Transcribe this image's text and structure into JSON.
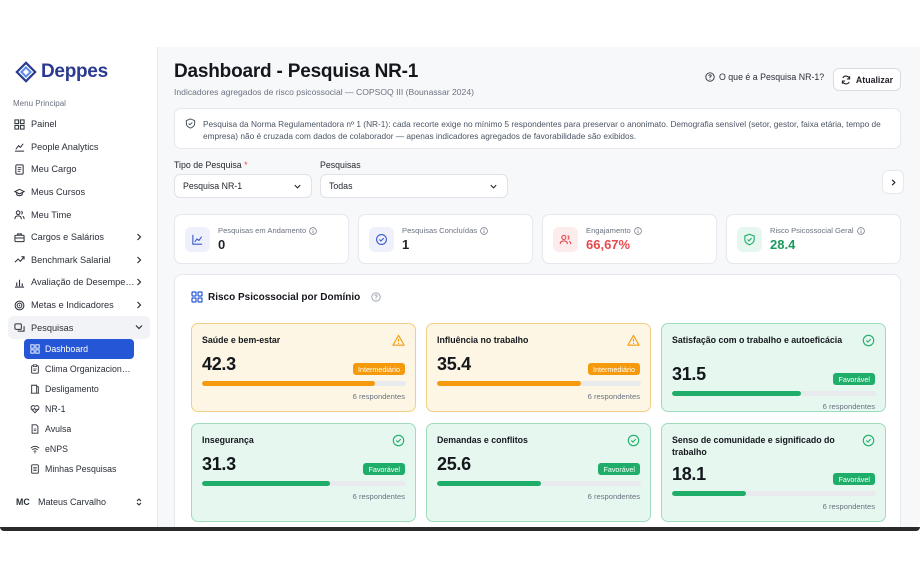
{
  "app": {
    "logo_text": "Deppes"
  },
  "sidebar": {
    "caption": "Menu Principal",
    "items": [
      {
        "label": "Painel",
        "icon": "grid-icon"
      },
      {
        "label": "People Analytics",
        "icon": "analytics-icon"
      },
      {
        "label": "Meu Cargo",
        "icon": "document-icon"
      },
      {
        "label": "Meus Cursos",
        "icon": "graduation-cap-icon"
      },
      {
        "label": "Meu Time",
        "icon": "users-icon"
      },
      {
        "label": "Cargos e Salários",
        "icon": "briefcase-icon"
      },
      {
        "label": "Benchmark Salarial",
        "icon": "trend-icon"
      },
      {
        "label": "Avaliação de Desempe…",
        "icon": "bar-chart-icon"
      },
      {
        "label": "Metas e Indicadores",
        "icon": "target-icon"
      },
      {
        "label": "Pesquisas",
        "icon": "survey-icon"
      }
    ],
    "sub_items": [
      {
        "label": "Dashboard",
        "icon": "grid-icon"
      },
      {
        "label": "Clima Organizacion…",
        "icon": "clipboard-icon"
      },
      {
        "label": "Desligamento",
        "icon": "door-icon"
      },
      {
        "label": "NR-1",
        "icon": "heart-pulse-icon"
      },
      {
        "label": "Avulsa",
        "icon": "file-icon"
      },
      {
        "label": "eNPS",
        "icon": "wifi-icon"
      },
      {
        "label": "Minhas Pesquisas",
        "icon": "list-icon"
      }
    ],
    "user": {
      "initials": "MC",
      "name": "Mateus Carvalho"
    }
  },
  "header": {
    "title": "Dashboard - Pesquisa NR-1",
    "subtitle": "Indicadores agregados de risco psicossocial — COPSOQ III (Bounassar 2024)",
    "help_link": "O que é a Pesquisa NR-1?",
    "refresh_label": "Atualizar"
  },
  "notice": {
    "text": "Pesquisa da Norma Regulamentadora nº 1 (NR-1): cada recorte exige no mínimo 5 respondentes para preservar o anonimato. Demografia sensível (setor, gestor, faixa etária, tempo de empresa) não é cruzada com dados de colaborador — apenas indicadores agregados de favorabilidade são exibidos."
  },
  "filters": {
    "type_label": "Tipo de Pesquisa",
    "type_required": "*",
    "type_value": "Pesquisa NR-1",
    "survey_label": "Pesquisas",
    "survey_value": "Todas"
  },
  "stats": [
    {
      "label": "Pesquisas em Andamento",
      "value": "0",
      "color": "#1f2329",
      "icon": "chart-line-icon",
      "icon_bg": "#eef1fb",
      "icon_color": "#3b5bcc"
    },
    {
      "label": "Pesquisas Concluídas",
      "value": "1",
      "color": "#1f2329",
      "icon": "check-circle-icon",
      "icon_bg": "#eef1fb",
      "icon_color": "#3b5bcc"
    },
    {
      "label": "Engajamento",
      "value": "66,67%",
      "color": "#e5484d",
      "icon": "users-icon",
      "icon_bg": "#fdecec",
      "icon_color": "#e5484d"
    },
    {
      "label": "Risco Psicossocial Geral",
      "value": "28.4",
      "color": "#1c9a5e",
      "icon": "shield-check-icon",
      "icon_bg": "#e6f7ef",
      "icon_color": "#1fae6a"
    }
  ],
  "panel": {
    "title": "Risco Psicossocial por Domínio",
    "domains": [
      {
        "title": "Saúde e bem-estar",
        "score": "42.3",
        "progress": 42.3,
        "badge": "Intermediário",
        "status": "warn",
        "respondents": "6 respondentes"
      },
      {
        "title": "Influência no trabalho",
        "score": "35.4",
        "progress": 35.4,
        "badge": "Intermediário",
        "status": "warn",
        "respondents": "6 respondentes"
      },
      {
        "title": "Satisfação com o trabalho e autoeficácia",
        "score": "31.5",
        "progress": 31.5,
        "badge": "Favorável",
        "status": "good",
        "respondents": "6 respondentes"
      },
      {
        "title": "Insegurança",
        "score": "31.3",
        "progress": 31.3,
        "badge": "Favorável",
        "status": "good",
        "respondents": "6 respondentes"
      },
      {
        "title": "Demandas e conflitos",
        "score": "25.6",
        "progress": 25.6,
        "badge": "Favorável",
        "status": "good",
        "respondents": "6 respondentes"
      },
      {
        "title": "Senso de comunidade e significado do trabalho",
        "score": "18.1",
        "progress": 18.1,
        "badge": "Favorável",
        "status": "good",
        "respondents": "6 respondentes"
      }
    ]
  }
}
